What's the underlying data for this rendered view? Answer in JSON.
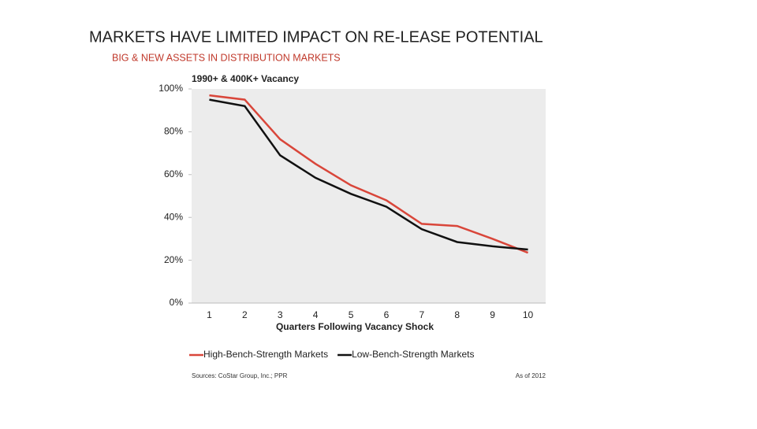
{
  "slide": {
    "title": "MARKETS HAVE LIMITED IMPACT ON RE-LEASE POTENTIAL",
    "subtitle": "BIG & NEW ASSETS IN DISTRIBUTION MARKETS"
  },
  "chart_data": {
    "type": "line",
    "title": "1990+ & 400K+ Vacancy",
    "x_label": "Quarters Following Vacancy Shock",
    "categories": [
      "1",
      "2",
      "3",
      "4",
      "5",
      "6",
      "7",
      "8",
      "9",
      "10"
    ],
    "series": [
      {
        "name": "High-Bench-Strength Markets",
        "color": "#d9463a",
        "values": [
          97,
          95,
          76.5,
          65,
          55,
          48,
          37,
          36,
          30,
          23.5
        ]
      },
      {
        "name": "Low-Bench-Strength Markets",
        "color": "#111111",
        "values": [
          95,
          92,
          69,
          58.5,
          51,
          45,
          34.5,
          28.5,
          26.5,
          25
        ]
      }
    ],
    "ylim": [
      0,
      100
    ],
    "yticks": [
      {
        "value": 0,
        "label": "0%"
      },
      {
        "value": 20,
        "label": "20%"
      },
      {
        "value": 40,
        "label": "40%"
      },
      {
        "value": 60,
        "label": "60%"
      },
      {
        "value": 80,
        "label": "80%"
      },
      {
        "value": 100,
        "label": "100%"
      }
    ],
    "legend": "bottom",
    "source": "Sources: CoStar Group, Inc.; PPR",
    "note": "As of 2012"
  }
}
